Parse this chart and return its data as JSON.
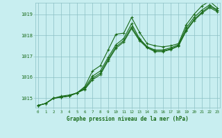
{
  "background_color": "#c8eef0",
  "grid_color": "#8bbfc4",
  "line_color": "#1a6b1a",
  "marker_color": "#1a6b1a",
  "xlabel": "Graphe pression niveau de la mer (hPa)",
  "xlabel_color": "#1a6b1a",
  "ytick_labels": [
    1015,
    1016,
    1017,
    1018,
    1019
  ],
  "xtick_labels": [
    0,
    1,
    2,
    3,
    4,
    5,
    6,
    7,
    8,
    9,
    10,
    11,
    12,
    13,
    14,
    15,
    16,
    17,
    18,
    19,
    20,
    21,
    22,
    23
  ],
  "ylim": [
    1014.55,
    1019.55
  ],
  "xlim": [
    -0.3,
    23.3
  ],
  "series": [
    [
      1014.65,
      1014.75,
      1015.0,
      1015.05,
      1015.1,
      1015.25,
      1015.55,
      1016.3,
      1016.55,
      1017.3,
      1018.05,
      1018.1,
      1018.85,
      1018.15,
      1017.6,
      1017.5,
      1017.45,
      1017.5,
      1017.6,
      1018.5,
      1019.0,
      1019.4,
      1019.62,
      1019.3
    ],
    [
      1014.65,
      1014.75,
      1015.0,
      1015.1,
      1015.15,
      1015.25,
      1015.5,
      1016.05,
      1016.3,
      1016.95,
      1017.55,
      1017.85,
      1018.55,
      1017.85,
      1017.45,
      1017.3,
      1017.3,
      1017.4,
      1017.55,
      1018.35,
      1018.85,
      1019.2,
      1019.45,
      1019.2
    ],
    [
      1014.65,
      1014.75,
      1015.0,
      1015.05,
      1015.1,
      1015.25,
      1015.45,
      1015.95,
      1016.2,
      1016.85,
      1017.45,
      1017.75,
      1018.4,
      1017.8,
      1017.45,
      1017.25,
      1017.25,
      1017.35,
      1017.5,
      1018.25,
      1018.75,
      1019.1,
      1019.38,
      1019.18
    ],
    [
      1014.65,
      1014.75,
      1015.0,
      1015.05,
      1015.12,
      1015.25,
      1015.42,
      1015.88,
      1016.12,
      1016.78,
      1017.38,
      1017.68,
      1018.32,
      1017.75,
      1017.4,
      1017.22,
      1017.22,
      1017.32,
      1017.48,
      1018.2,
      1018.7,
      1019.05,
      1019.32,
      1019.12
    ]
  ]
}
